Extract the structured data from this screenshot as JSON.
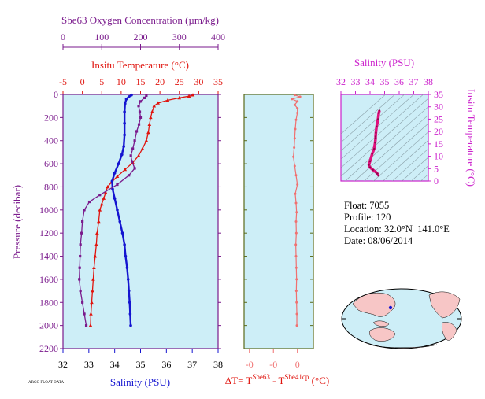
{
  "colors": {
    "panel_bg": "#cdeef7",
    "oxygen": "#7a1a8c",
    "temperature": "#e0140e",
    "salinity": "#1414d0",
    "delta_t": "#f07070",
    "ts_curve": "#e0127e",
    "ts_axis": "#cc22cc",
    "land": "#f7c6c6"
  },
  "float_info": {
    "float_label": "Float:",
    "float_value": "7055",
    "profile_label": "Profile:",
    "profile_value": "120",
    "location_label": "Location:",
    "location_value": "32.0°N  141.0°E",
    "date_label": "Date:",
    "date_value": "08/06/2014"
  },
  "footer_note": "ARGO FLOAT DATA",
  "chart_data": [
    {
      "type": "line",
      "panel": "main-profile",
      "ylabel": "Pressure (decibar)",
      "ylim": [
        2200,
        0
      ],
      "y_ticks": [
        0,
        200,
        400,
        600,
        800,
        1000,
        1200,
        1400,
        1600,
        1800,
        2000,
        2200
      ],
      "axes": {
        "oxygen": {
          "label": "Sbe63 Oxygen Concentration (µm/kg)",
          "lim": [
            0,
            400
          ],
          "ticks": [
            0,
            100,
            200,
            300,
            400
          ]
        },
        "temperature": {
          "label": "Insitu Temperature (°C)",
          "lim": [
            -5,
            35
          ],
          "ticks": [
            -5,
            0,
            5,
            10,
            15,
            20,
            25,
            30,
            35
          ]
        },
        "salinity": {
          "label": "Salinity (PSU)",
          "lim": [
            32,
            38
          ],
          "ticks": [
            32,
            33,
            34,
            35,
            36,
            37,
            38
          ]
        }
      },
      "series": [
        {
          "name": "Insitu Temperature (°C)",
          "axis": "temperature",
          "points": [
            [
              28.5,
              5
            ],
            [
              27.5,
              15
            ],
            [
              25,
              30
            ],
            [
              22,
              50
            ],
            [
              19.5,
              75
            ],
            [
              18.5,
              100
            ],
            [
              18,
              150
            ],
            [
              17.6,
              200
            ],
            [
              17.3,
              260
            ],
            [
              17,
              330
            ],
            [
              16.5,
              400
            ],
            [
              15.5,
              470
            ],
            [
              14.5,
              530
            ],
            [
              13,
              590
            ],
            [
              11,
              650
            ],
            [
              9,
              710
            ],
            [
              7.5,
              760
            ],
            [
              6.5,
              800
            ],
            [
              6,
              850
            ],
            [
              5.5,
              900
            ],
            [
              5,
              950
            ],
            [
              4.5,
              1000
            ],
            [
              4.2,
              1100
            ],
            [
              3.8,
              1200
            ],
            [
              3.6,
              1300
            ],
            [
              3.3,
              1400
            ],
            [
              3,
              1500
            ],
            [
              2.8,
              1600
            ],
            [
              2.6,
              1700
            ],
            [
              2.4,
              1800
            ],
            [
              2.2,
              1900
            ],
            [
              2.1,
              2000
            ]
          ]
        },
        {
          "name": "Salinity (PSU)",
          "axis": "salinity",
          "points": [
            [
              34.65,
              5
            ],
            [
              34.55,
              20
            ],
            [
              34.45,
              40
            ],
            [
              34.4,
              80
            ],
            [
              34.38,
              150
            ],
            [
              34.38,
              250
            ],
            [
              34.38,
              350
            ],
            [
              34.35,
              450
            ],
            [
              34.28,
              520
            ],
            [
              34.15,
              600
            ],
            [
              34.0,
              680
            ],
            [
              33.9,
              750
            ],
            [
              33.92,
              820
            ],
            [
              34.0,
              900
            ],
            [
              34.1,
              1000
            ],
            [
              34.2,
              1100
            ],
            [
              34.3,
              1200
            ],
            [
              34.38,
              1300
            ],
            [
              34.42,
              1400
            ],
            [
              34.48,
              1500
            ],
            [
              34.52,
              1600
            ],
            [
              34.55,
              1700
            ],
            [
              34.58,
              1800
            ],
            [
              34.6,
              1900
            ],
            [
              34.62,
              2000
            ]
          ]
        },
        {
          "name": "Sbe63 Oxygen Concentration (µm/kg)",
          "axis": "oxygen",
          "points": [
            [
              215,
              10
            ],
            [
              210,
              30
            ],
            [
              200,
              60
            ],
            [
              195,
              100
            ],
            [
              198,
              150
            ],
            [
              200,
              200
            ],
            [
              196,
              260
            ],
            [
              190,
              320
            ],
            [
              185,
              400
            ],
            [
              180,
              470
            ],
            [
              175,
              530
            ],
            [
              178,
              580
            ],
            [
              185,
              640
            ],
            [
              170,
              700
            ],
            [
              140,
              780
            ],
            [
              95,
              870
            ],
            [
              68,
              930
            ],
            [
              55,
              1000
            ],
            [
              50,
              1100
            ],
            [
              48,
              1200
            ],
            [
              45,
              1300
            ],
            [
              44,
              1400
            ],
            [
              43,
              1500
            ],
            [
              42,
              1600
            ],
            [
              45,
              1700
            ],
            [
              50,
              1800
            ],
            [
              55,
              1900
            ],
            [
              60,
              2000
            ]
          ]
        }
      ]
    },
    {
      "type": "line",
      "panel": "delta-t",
      "xlabel": "ΔT= T^Sbe63 - T^Sbe41cp (°C)",
      "xlim": [
        -0.02,
        0.006
      ],
      "x_tick_values": [
        -0.018,
        -0.009,
        0
      ],
      "x_tick_labels": [
        "-0",
        "-0",
        "0"
      ],
      "ylim": [
        2200,
        0
      ],
      "series": [
        {
          "name": "ΔT",
          "points": [
            [
              -0.001,
              5
            ],
            [
              0.001,
              20
            ],
            [
              -0.002,
              40
            ],
            [
              0.0,
              60
            ],
            [
              -0.001,
              90
            ],
            [
              0.0,
              120
            ],
            [
              0.0,
              160
            ],
            [
              -0.0005,
              220
            ],
            [
              -0.0008,
              300
            ],
            [
              -0.001,
              380
            ],
            [
              -0.0012,
              460
            ],
            [
              -0.0015,
              540
            ],
            [
              -0.001,
              620
            ],
            [
              -0.0005,
              700
            ],
            [
              0.0,
              780
            ],
            [
              -0.0008,
              860
            ],
            [
              -0.0005,
              940
            ],
            [
              -0.0003,
              1020
            ],
            [
              -0.0005,
              1100
            ],
            [
              -0.0004,
              1200
            ],
            [
              -0.0006,
              1300
            ],
            [
              -0.0005,
              1400
            ],
            [
              -0.0004,
              1500
            ],
            [
              -0.0003,
              1600
            ],
            [
              -0.0004,
              1700
            ],
            [
              -0.0003,
              1800
            ],
            [
              -0.0002,
              1900
            ],
            [
              -0.0002,
              2000
            ]
          ]
        }
      ]
    },
    {
      "type": "line",
      "panel": "ts-diagram",
      "xlabel": "Salinity (PSU)",
      "ylabel": "Insitu Temperature (°C)",
      "xlim": [
        32,
        38
      ],
      "ylim": [
        0,
        35
      ],
      "x_ticks": [
        32,
        33,
        34,
        35,
        36,
        37,
        38
      ],
      "y_ticks": [
        0,
        5,
        10,
        15,
        20,
        25,
        30,
        35
      ],
      "series": [
        {
          "name": "T-S profile",
          "points": [
            [
              34.6,
              2.1
            ],
            [
              34.5,
              3
            ],
            [
              34.4,
              3.6
            ],
            [
              34.2,
              4.5
            ],
            [
              34.0,
              5.5
            ],
            [
              33.92,
              6.5
            ],
            [
              34.0,
              8
            ],
            [
              34.15,
              11
            ],
            [
              34.28,
              13
            ],
            [
              34.35,
              15.5
            ],
            [
              34.38,
              17.3
            ],
            [
              34.38,
              18
            ],
            [
              34.4,
              19.5
            ],
            [
              34.45,
              22
            ],
            [
              34.55,
              25
            ],
            [
              34.6,
              27.5
            ],
            [
              34.65,
              28.5
            ]
          ]
        }
      ]
    }
  ]
}
